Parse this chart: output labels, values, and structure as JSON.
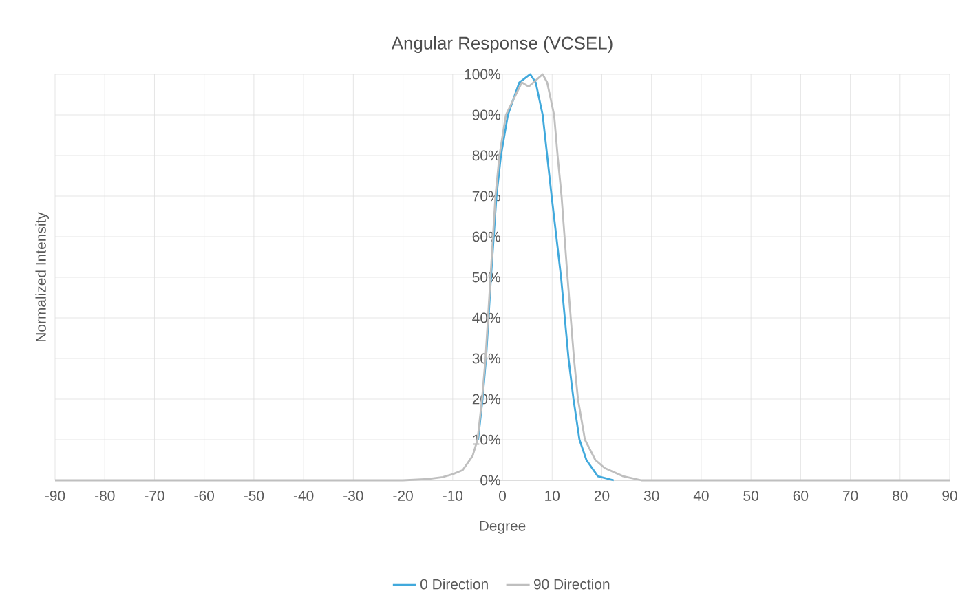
{
  "chart_data": {
    "type": "line",
    "title": "Angular Response (VCSEL)",
    "xlabel": "Degree",
    "ylabel": "Normalized Intensity",
    "xlim": [
      -90,
      90
    ],
    "xticks": [
      -90,
      -80,
      -70,
      -60,
      -50,
      -40,
      -30,
      -20,
      -10,
      0,
      10,
      20,
      30,
      40,
      50,
      60,
      70,
      80,
      90
    ],
    "ylim": [
      0,
      100
    ],
    "yticks": [
      {
        "value": 0,
        "label": "0%"
      },
      {
        "value": 10,
        "label": "10%"
      },
      {
        "value": 20,
        "label": "20%"
      },
      {
        "value": 30,
        "label": "30%"
      },
      {
        "value": 40,
        "label": "40%"
      },
      {
        "value": 50,
        "label": "50%"
      },
      {
        "value": 60,
        "label": "60%"
      },
      {
        "value": 70,
        "label": "70%"
      },
      {
        "value": 80,
        "label": "80%"
      },
      {
        "value": 90,
        "label": "90%"
      },
      {
        "value": 100,
        "label": "100%"
      }
    ],
    "grid": true,
    "legend": "bottom",
    "marker": "none",
    "line_style": "solid",
    "series": [
      {
        "name": "0 Direction",
        "color": "#41a9dc",
        "x": [
          -4.9,
          -4,
          -3.3,
          -2.3,
          -1.2,
          -0.3,
          1.1,
          3.4,
          5.6,
          6.7,
          8.1,
          9,
          9.9,
          11.8,
          13.3,
          14.3,
          15.5,
          16.9,
          19.2,
          22.4
        ],
        "values": [
          10,
          20,
          30,
          50,
          70,
          80,
          90,
          98,
          100,
          98,
          90,
          80,
          70,
          50,
          30,
          20,
          10,
          5,
          1,
          0
        ]
      },
      {
        "name": "90 Direction",
        "color": "#bfbfbf",
        "x": [
          -90,
          -60,
          -30,
          -20,
          -15,
          -12,
          -10,
          -8,
          -6,
          -5,
          -4.1,
          -3.4,
          -2.4,
          -1.4,
          -0.6,
          0.7,
          3.9,
          5.3,
          8.1,
          9,
          10.4,
          11.1,
          11.9,
          13.1,
          14.4,
          15.2,
          16.6,
          18.7,
          20.6,
          24.3,
          28,
          40,
          60,
          90
        ],
        "values": [
          0,
          0,
          0,
          0,
          0.3,
          0.8,
          1.5,
          2.5,
          6,
          10,
          20,
          30,
          50,
          70,
          80,
          90,
          98,
          97,
          100,
          98,
          90,
          80,
          70,
          50,
          30,
          20,
          10,
          5,
          3,
          1,
          0,
          0,
          0,
          0
        ]
      }
    ]
  }
}
